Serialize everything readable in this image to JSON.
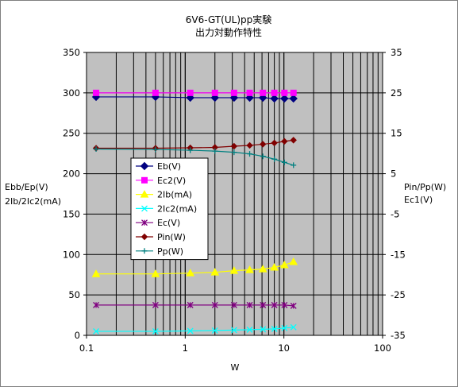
{
  "chart_data": {
    "type": "line",
    "title": [
      "6V6-GT(UL)pp実験",
      "出力対動作特性"
    ],
    "xlabel": "W",
    "ylabel_left": [
      "Ebb/Ep(V)",
      "2Ib/2Ic2(mA)"
    ],
    "ylabel_right": [
      "Pin/Pp(W)",
      "Ec1(V)"
    ],
    "x_scale": "log",
    "xlim": [
      0.1,
      100
    ],
    "ylim_left": [
      0,
      350
    ],
    "ylim_right": [
      -35,
      35
    ],
    "x_ticks": [
      "0.1",
      "1",
      "10",
      "100"
    ],
    "y_ticks_left": [
      "0",
      "50",
      "100",
      "150",
      "200",
      "250",
      "300",
      "350"
    ],
    "y_ticks_right": [
      "-35",
      "-25",
      "-15",
      "-5",
      "5",
      "15",
      "25",
      "35"
    ],
    "grid": true,
    "legend_position": "center-left",
    "x": [
      0.125,
      0.5,
      1.125,
      2.0,
      3.125,
      4.5,
      6.125,
      8.0,
      10.125,
      12.5
    ],
    "series": [
      {
        "name": "Eb(V)",
        "axis": "left",
        "color": "#000080",
        "marker": "diamond",
        "values": [
          295,
          295,
          294,
          294,
          294,
          294,
          294,
          293,
          293,
          293
        ]
      },
      {
        "name": "Ec2(V)",
        "axis": "left",
        "color": "#ff00ff",
        "marker": "square",
        "values": [
          300,
          300,
          300,
          300,
          300,
          300,
          300,
          300,
          300,
          300
        ]
      },
      {
        "name": "2Ib(mA)",
        "axis": "left",
        "color": "#ffff00",
        "marker": "triangle",
        "values": [
          76,
          76,
          77,
          78,
          80,
          81,
          82,
          84,
          87,
          91
        ]
      },
      {
        "name": "2Ic2(mA)",
        "axis": "left",
        "color": "#00ffff",
        "marker": "x",
        "values": [
          5,
          5,
          5.5,
          6,
          6.5,
          7,
          7.5,
          8,
          9,
          10
        ]
      },
      {
        "name": "Ec(V)",
        "axis": "right",
        "color": "#800080",
        "marker": "star",
        "values": [
          -27.5,
          -27.5,
          -27.5,
          -27.5,
          -27.5,
          -27.5,
          -27.5,
          -27.5,
          -27.5,
          -27.7
        ]
      },
      {
        "name": "Pin(W)",
        "axis": "right",
        "color": "#800000",
        "marker": "circle",
        "values": [
          11.3,
          11.3,
          11.4,
          11.5,
          11.8,
          12.0,
          12.3,
          12.6,
          13.0,
          13.3
        ]
      },
      {
        "name": "Pp(W)",
        "axis": "right",
        "color": "#008080",
        "marker": "plus",
        "values": [
          11.1,
          11.0,
          10.8,
          10.6,
          10.3,
          9.9,
          9.3,
          8.6,
          7.8,
          7.1
        ]
      }
    ]
  }
}
